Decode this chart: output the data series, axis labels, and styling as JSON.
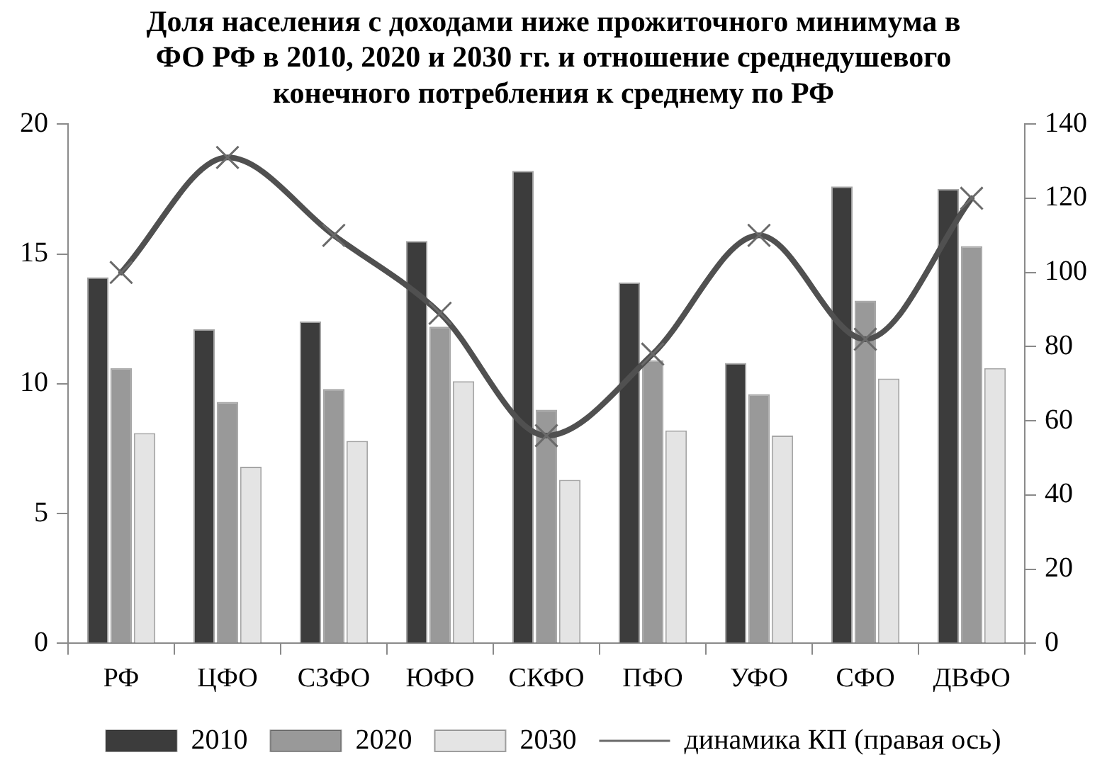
{
  "chart_data": {
    "type": "bar",
    "title": "Доля населения с доходами ниже прожиточного минимума в ФО РФ в 2010, 2020 и 2030 гг. и отношение среднедушевого конечного потребления к среднему по РФ",
    "categories": [
      "РФ",
      "ЦФО",
      "СЗФО",
      "ЮФО",
      "СКФО",
      "ПФО",
      "УФО",
      "СФО",
      "ДВФО"
    ],
    "series": [
      {
        "name": "2010",
        "color": "#3c3c3c",
        "values": [
          14.1,
          12.1,
          12.4,
          15.5,
          18.2,
          13.9,
          10.8,
          17.6,
          17.5
        ]
      },
      {
        "name": "2020",
        "color": "#999999",
        "values": [
          10.6,
          9.3,
          9.8,
          12.2,
          9.0,
          10.9,
          9.6,
          13.2,
          15.3
        ]
      },
      {
        "name": "2030",
        "color": "#e4e4e4",
        "values": [
          8.1,
          6.8,
          7.8,
          10.1,
          6.3,
          8.2,
          8.0,
          10.2,
          10.6
        ]
      },
      {
        "name": "динамика КП (правая ось)",
        "type": "line",
        "axis": "y2",
        "color": "#505050",
        "values": [
          100,
          131,
          110,
          89,
          56,
          78,
          110,
          82,
          120
        ]
      }
    ],
    "ylim": [
      0,
      20
    ],
    "yticks": [
      0,
      5,
      10,
      15,
      20
    ],
    "y2lim": [
      0,
      140
    ],
    "y2ticks": [
      0,
      20,
      40,
      60,
      80,
      100,
      120,
      140
    ],
    "legend": "bottom",
    "marker": "cross",
    "line_style": "solid"
  }
}
